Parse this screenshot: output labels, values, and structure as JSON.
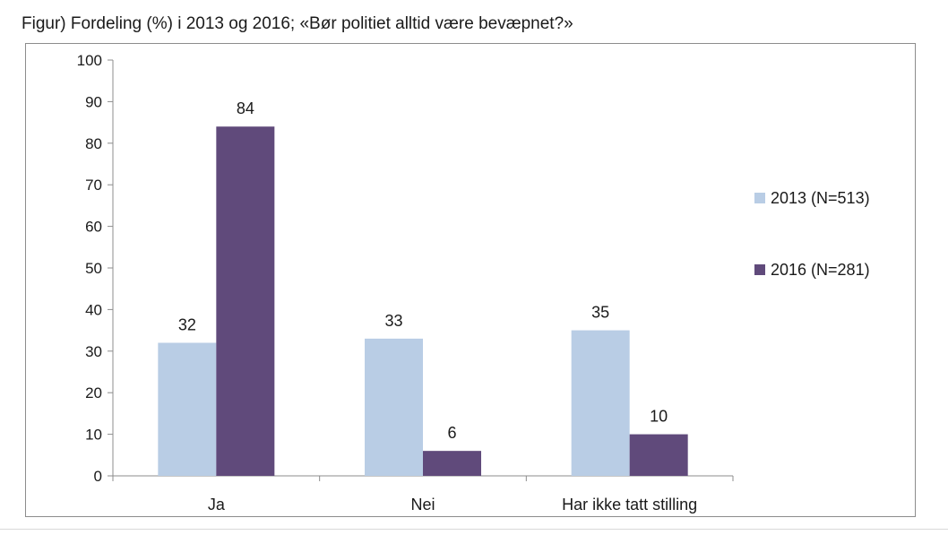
{
  "title": "Figur) Fordeling (%) i 2013 og 2016; «Bør politiet alltid være bevæpnet?»",
  "chart_data": {
    "type": "bar",
    "categories": [
      "Ja",
      "Nei",
      "Har ikke tatt stilling"
    ],
    "series": [
      {
        "name": "2013 (N=513)",
        "values": [
          32,
          33,
          35
        ],
        "color": "#b9cde5"
      },
      {
        "name": "2016 (N=281)",
        "values": [
          84,
          6,
          10
        ],
        "color": "#604a7b"
      }
    ],
    "ylim": [
      0,
      100
    ],
    "yticks": [
      0,
      10,
      20,
      30,
      40,
      50,
      60,
      70,
      80,
      90,
      100
    ],
    "grid": false,
    "legend_position": "right",
    "data_labels": true
  }
}
